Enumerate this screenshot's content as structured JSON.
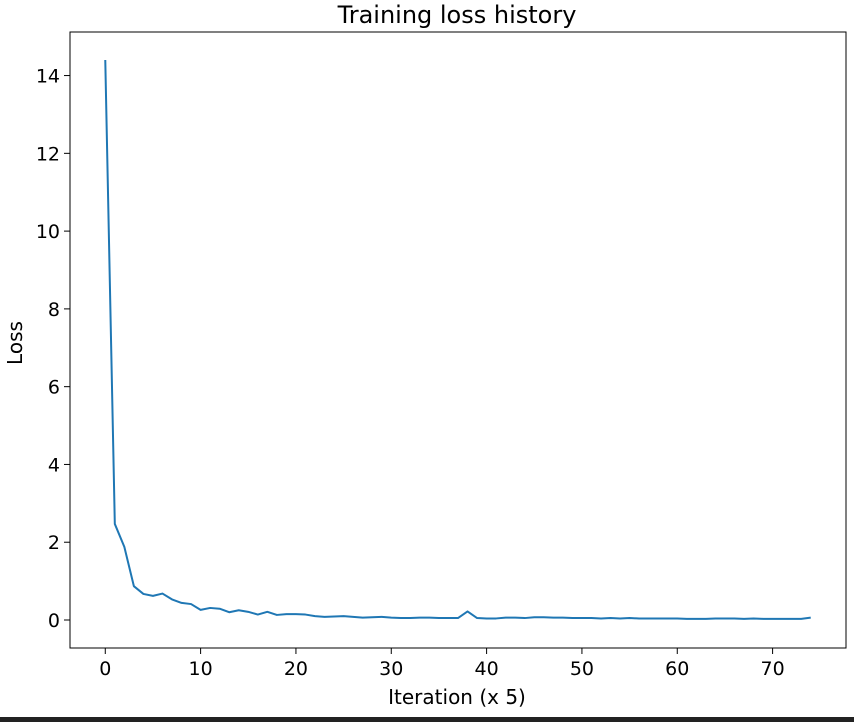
{
  "chart_data": {
    "type": "line",
    "title": "Training loss history",
    "xlabel": "Iteration (x 5)",
    "ylabel": "Loss",
    "xlim": [
      -3.7,
      77.7
    ],
    "ylim": [
      -0.72,
      15.12
    ],
    "xticks": [
      0,
      10,
      20,
      30,
      40,
      50,
      60,
      70
    ],
    "yticks": [
      0,
      2,
      4,
      6,
      8,
      10,
      12,
      14
    ],
    "grid": false,
    "line_color": "#1f77b4",
    "series": [
      {
        "x": [
          0,
          1,
          2,
          3,
          4,
          5,
          6,
          7,
          8,
          9,
          10,
          11,
          12,
          13,
          14,
          15,
          16,
          17,
          18,
          19,
          20,
          21,
          22,
          23,
          24,
          25,
          26,
          27,
          28,
          29,
          30,
          31,
          32,
          33,
          34,
          35,
          36,
          37,
          38,
          39,
          40,
          41,
          42,
          43,
          44,
          45,
          46,
          47,
          48,
          49,
          50,
          51,
          52,
          53,
          54,
          55,
          56,
          57,
          58,
          59,
          60,
          61,
          62,
          63,
          64,
          65,
          66,
          67,
          68,
          69,
          70,
          71,
          72,
          73,
          74
        ],
        "values": [
          14.4,
          2.47,
          1.88,
          0.87,
          0.67,
          0.62,
          0.68,
          0.53,
          0.44,
          0.41,
          0.26,
          0.31,
          0.29,
          0.2,
          0.25,
          0.21,
          0.14,
          0.21,
          0.13,
          0.15,
          0.15,
          0.14,
          0.1,
          0.08,
          0.09,
          0.1,
          0.08,
          0.06,
          0.07,
          0.08,
          0.06,
          0.05,
          0.05,
          0.06,
          0.06,
          0.05,
          0.05,
          0.05,
          0.22,
          0.05,
          0.04,
          0.04,
          0.06,
          0.06,
          0.05,
          0.07,
          0.07,
          0.06,
          0.06,
          0.05,
          0.05,
          0.05,
          0.04,
          0.05,
          0.04,
          0.05,
          0.04,
          0.04,
          0.04,
          0.04,
          0.04,
          0.03,
          0.03,
          0.03,
          0.04,
          0.04,
          0.04,
          0.03,
          0.04,
          0.03,
          0.03,
          0.03,
          0.03,
          0.03,
          0.06
        ]
      }
    ]
  }
}
